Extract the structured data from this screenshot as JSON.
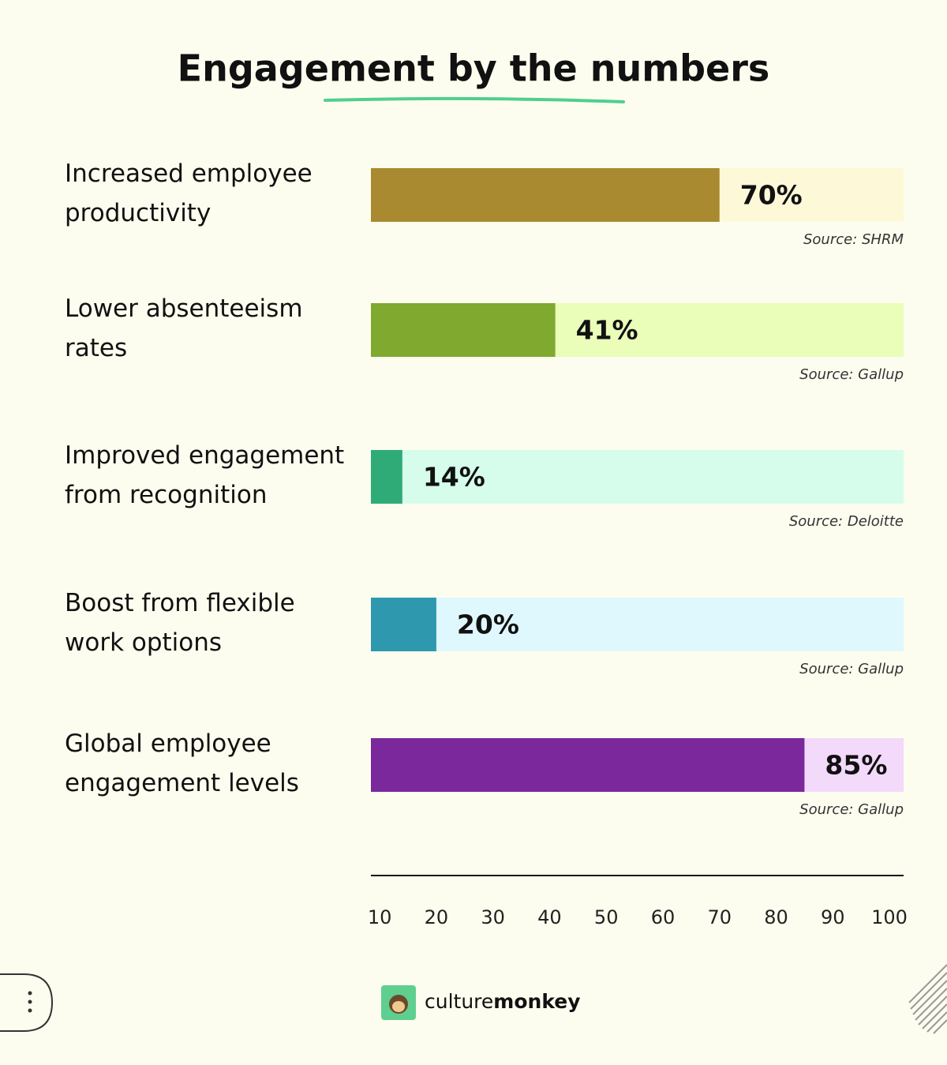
{
  "chart_data": {
    "type": "bar",
    "orientation": "horizontal",
    "title": "Engagement by the numbers",
    "categories": [
      [
        "Increased employee",
        "productivity"
      ],
      [
        "Lower absenteeism",
        "rates"
      ],
      [
        "Improved engagement",
        "from recognition"
      ],
      [
        "Boost from flexible",
        "work options"
      ],
      [
        "Global employee",
        "engagement levels"
      ]
    ],
    "values": [
      70,
      41,
      14,
      20,
      85
    ],
    "value_labels": [
      "70%",
      "41%",
      "14%",
      "20%",
      "85%"
    ],
    "colors": [
      "#a98a31",
      "#80a92f",
      "#2fab77",
      "#2e98ae",
      "#7a289b"
    ],
    "track_colors": [
      "#fdf8d7",
      "#eafdb9",
      "#d6fdec",
      "#dff8fd",
      "#f3d9fa"
    ],
    "sources": [
      "Source: SHRM",
      "Source: Gallup",
      "Source: Deloitte",
      "Source: Gallup",
      "Source: Gallup"
    ],
    "xlim": [
      8.45,
      102.5
    ],
    "xticks": [
      10,
      20,
      30,
      40,
      50,
      60,
      70,
      80,
      90,
      100
    ]
  },
  "logo": {
    "light": "culture",
    "bold": "monkey"
  }
}
